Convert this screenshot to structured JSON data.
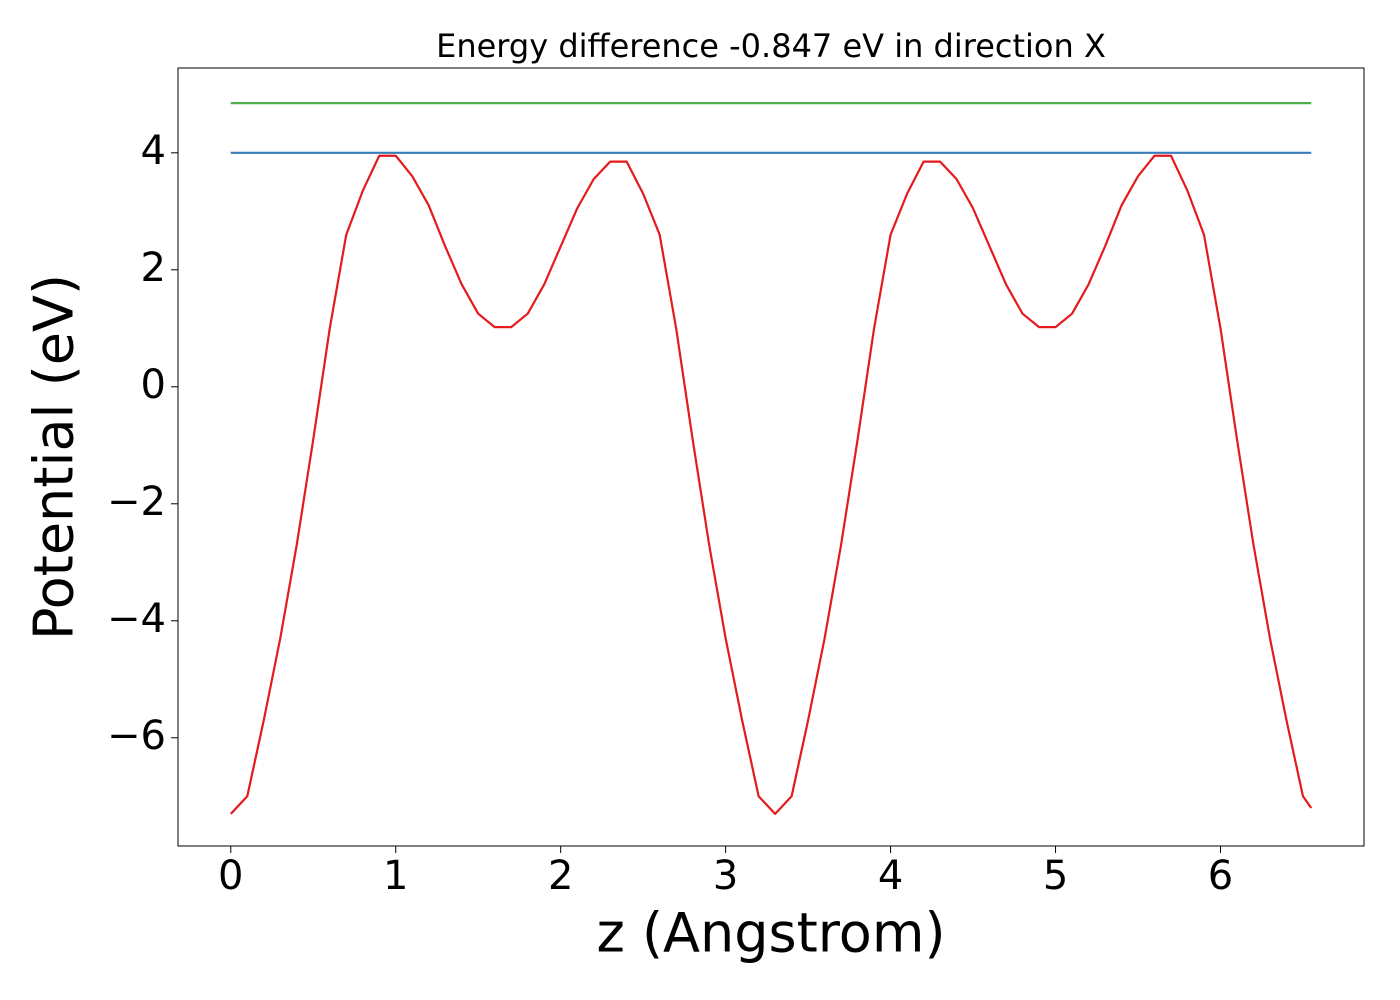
{
  "chart_data": {
    "type": "line",
    "title": "Energy difference -0.847 eV in direction X",
    "xlabel": "z (Angstrom)",
    "ylabel": "Potential (eV)",
    "xlim": [
      -0.32,
      6.87
    ],
    "ylim": [
      -7.85,
      5.45
    ],
    "xticks": [
      0,
      1,
      2,
      3,
      4,
      5,
      6
    ],
    "yticks": [
      {
        "value": -6,
        "label": "−6"
      },
      {
        "value": -4,
        "label": "−4"
      },
      {
        "value": -2,
        "label": "−2"
      },
      0,
      2,
      4
    ],
    "grid": false,
    "series": [
      {
        "color": "#e41a1c",
        "x": [
          0,
          0.1,
          0.2,
          0.3,
          0.4,
          0.5,
          0.6,
          0.7,
          0.8,
          0.9,
          1.0,
          1.1,
          1.2,
          1.3,
          1.4,
          1.5,
          1.6,
          1.7,
          1.8,
          1.9,
          2.0,
          2.1,
          2.2,
          2.3,
          2.4,
          2.5,
          2.6,
          2.7,
          2.8,
          2.9,
          3.0,
          3.1,
          3.2,
          3.3,
          3.4,
          3.5,
          3.6,
          3.7,
          3.8,
          3.9,
          4.0,
          4.1,
          4.2,
          4.3,
          4.4,
          4.5,
          4.6,
          4.7,
          4.8,
          4.9,
          5.0,
          5.1,
          5.2,
          5.3,
          5.4,
          5.5,
          5.6,
          5.7,
          5.8,
          5.9,
          6.0,
          6.1,
          6.2,
          6.3,
          6.4,
          6.5,
          6.55
        ],
        "values": [
          -7.3,
          -7.0,
          -5.7,
          -4.3,
          -2.7,
          -0.9,
          1.0,
          2.6,
          3.35,
          3.95,
          3.95,
          3.6,
          3.1,
          2.4,
          1.75,
          1.25,
          1.02,
          1.02,
          1.25,
          1.75,
          2.4,
          3.05,
          3.55,
          3.85,
          3.85,
          3.3,
          2.6,
          1.0,
          -0.9,
          -2.7,
          -4.3,
          -5.7,
          -7.0,
          -7.3,
          -7.0,
          -5.7,
          -4.3,
          -2.7,
          -0.9,
          1.0,
          2.6,
          3.3,
          3.85,
          3.85,
          3.55,
          3.05,
          2.4,
          1.75,
          1.25,
          1.02,
          1.02,
          1.25,
          1.75,
          2.4,
          3.1,
          3.6,
          3.95,
          3.95,
          3.35,
          2.6,
          1.0,
          -0.9,
          -2.7,
          -4.3,
          -5.7,
          -7.0,
          -7.2
        ]
      },
      {
        "color": "#377eb8",
        "x": [
          0,
          6.55
        ],
        "values": [
          4.0,
          4.0
        ]
      },
      {
        "color": "#4daf4a",
        "x": [
          0,
          6.55
        ],
        "values": [
          4.85,
          4.85
        ]
      }
    ]
  }
}
